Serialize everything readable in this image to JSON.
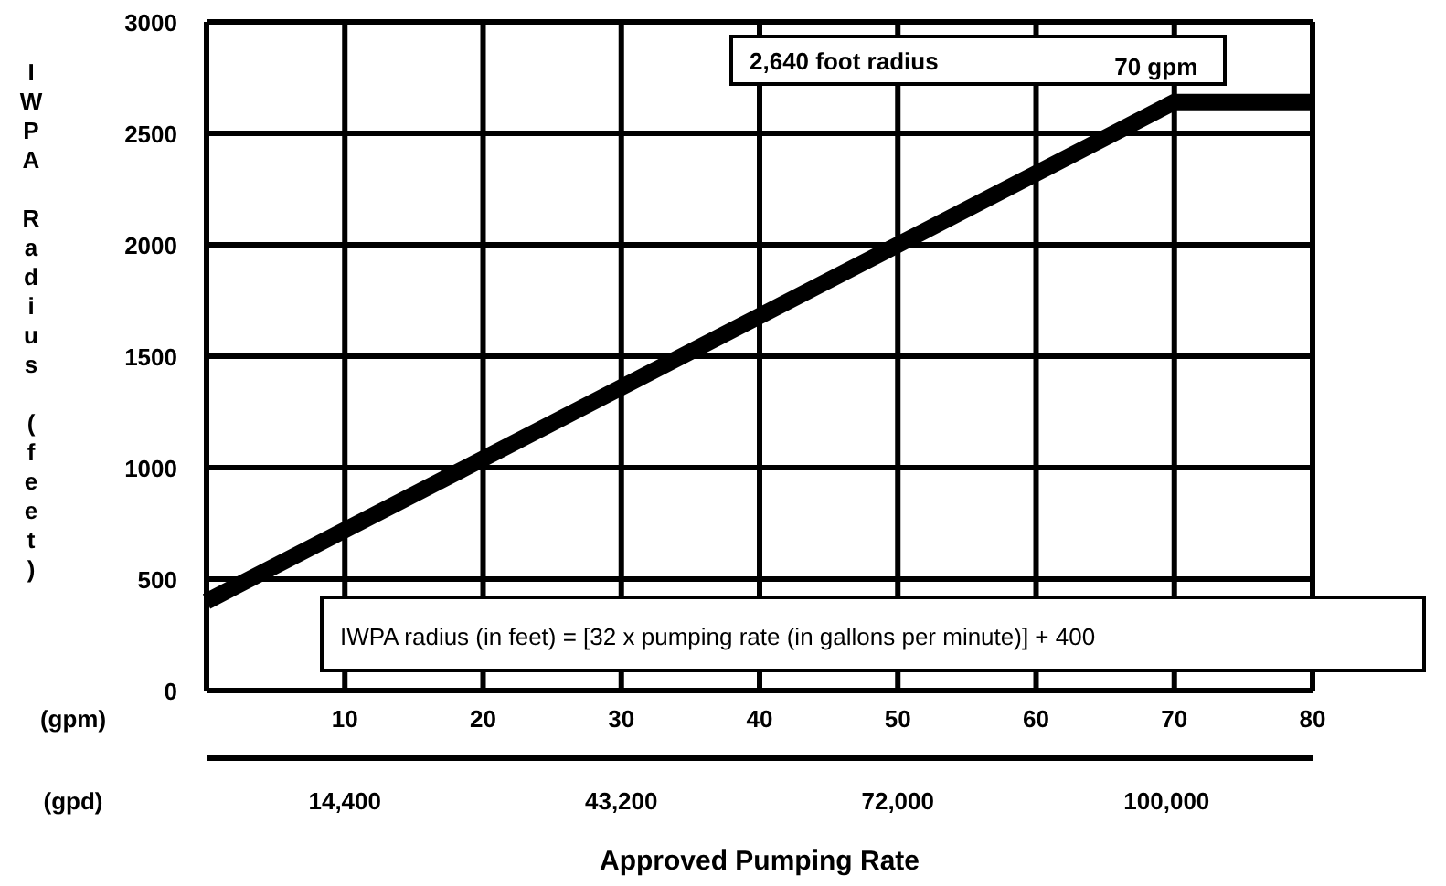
{
  "chart_data": {
    "type": "line",
    "xlabel": "Approved Pumping Rate",
    "ylabel": "IWPA Radius (feet)",
    "x2label": "(gpd)",
    "x": [
      0,
      70,
      80
    ],
    "series": [
      {
        "color": "#000000",
        "values": [
          400,
          2640,
          2640
        ]
      }
    ],
    "xlim": [
      0,
      80
    ],
    "xticks": [
      10,
      20,
      30,
      40,
      50,
      60,
      70,
      80
    ],
    "ylim": [
      0,
      3000
    ],
    "yticks": [
      0,
      500,
      1000,
      1500,
      2000,
      2500,
      3000
    ],
    "x2lim": [
      0,
      115200
    ],
    "x2ticks": [
      {
        "value": 14400,
        "label": "14,400"
      },
      {
        "value": 43200,
        "label": "43,200"
      },
      {
        "value": 72000,
        "label": "72,000"
      },
      {
        "value": 100000,
        "label": "100,000"
      }
    ],
    "grid": true,
    "line_style": "solid",
    "marker": "none",
    "annotations": [
      "2,640 foot radius",
      {
        "text": "70 gpm",
        "x": 70,
        "y": 2640
      },
      "IWPA radius (in feet) = [32 x pumping rate (in gallons per minute)] + 400",
      "(gpm)"
    ]
  }
}
